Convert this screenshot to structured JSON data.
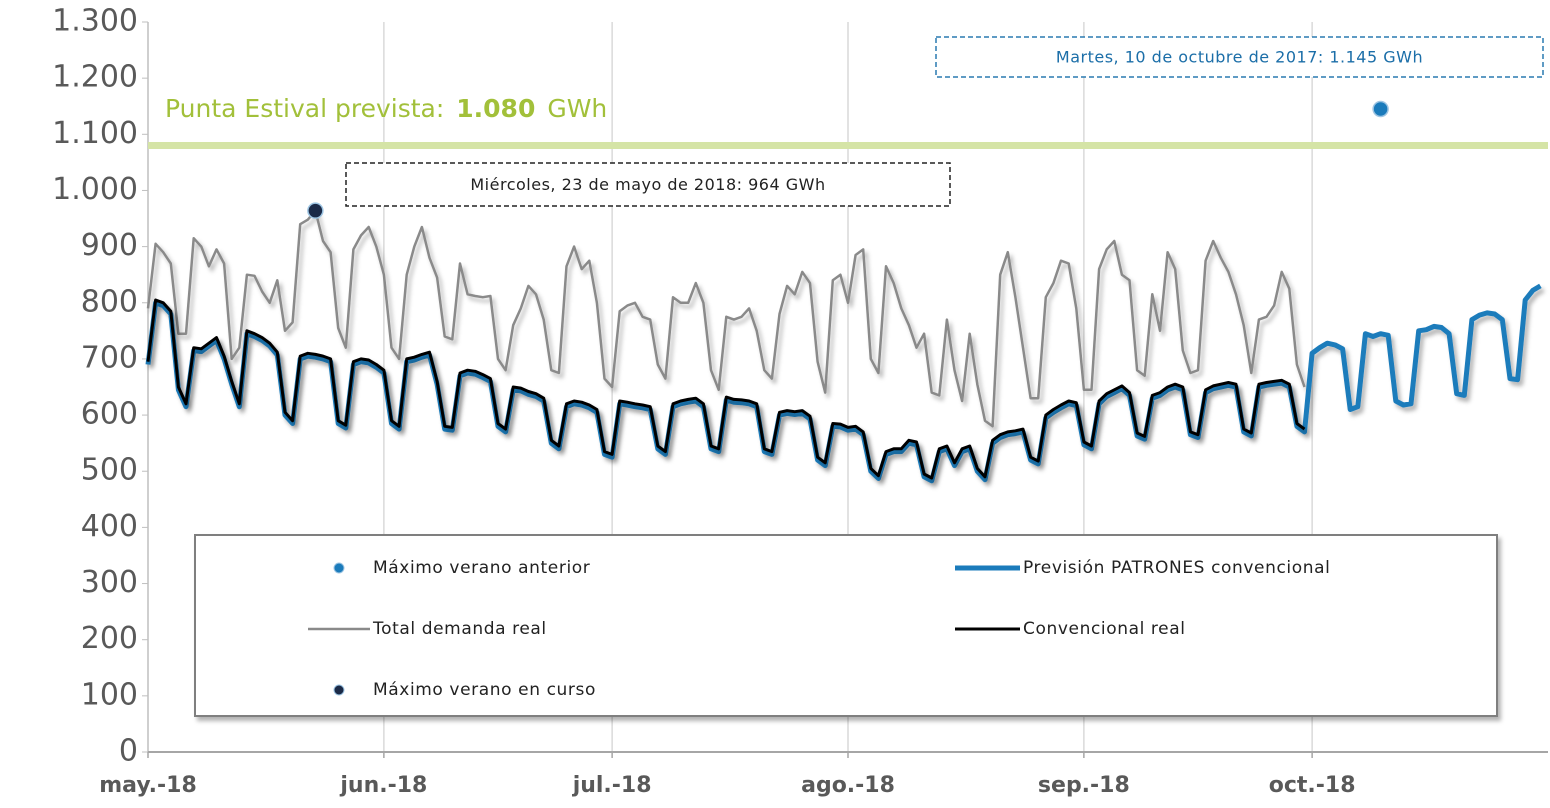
{
  "chart_data": {
    "type": "line",
    "annotations": [
      {
        "text": "Miércoles, 23 de mayo de 2018: 964 GWh"
      },
      {
        "text": "Martes, 10 de octubre de 2017: 1.145 GWh"
      }
    ],
    "reference_line": {
      "text": "Punta Estival prevista:",
      "value": 1080,
      "value_label": "1.080",
      "unit": "GWh",
      "color": "#d5e4a6",
      "text_color": "#a2c03a"
    },
    "xlim": [
      0,
      184
    ],
    "xticks": [
      {
        "value": 0,
        "label": "may.-18"
      },
      {
        "value": 31,
        "label": "jun.-18"
      },
      {
        "value": 61,
        "label": "jul.-18"
      },
      {
        "value": 92,
        "label": "ago.-18"
      },
      {
        "value": 123,
        "label": "sep.-18"
      },
      {
        "value": 153,
        "label": "oct.-18"
      }
    ],
    "ylim": [
      0,
      1300
    ],
    "yticks": [
      0,
      100,
      200,
      300,
      400,
      500,
      600,
      700,
      800,
      900,
      {
        "value": 1000,
        "label": "1.000"
      },
      {
        "value": 1100,
        "label": "1.100"
      },
      {
        "value": 1200,
        "label": "1.200"
      },
      {
        "value": 1300,
        "label": "1.300"
      }
    ],
    "xgrid": true,
    "x": [
      0,
      1,
      2,
      3,
      4,
      5,
      6,
      7,
      8,
      9,
      10,
      11,
      12,
      13,
      14,
      15,
      16,
      17,
      18,
      19,
      20,
      21,
      22,
      23,
      24,
      25,
      26,
      27,
      28,
      29,
      30,
      31,
      32,
      33,
      34,
      35,
      36,
      37,
      38,
      39,
      40,
      41,
      42,
      43,
      44,
      45,
      46,
      47,
      48,
      49,
      50,
      51,
      52,
      53,
      54,
      55,
      56,
      57,
      58,
      59,
      60,
      61,
      62,
      63,
      64,
      65,
      66,
      67,
      68,
      69,
      70,
      71,
      72,
      73,
      74,
      75,
      76,
      77,
      78,
      79,
      80,
      81,
      82,
      83,
      84,
      85,
      86,
      87,
      88,
      89,
      90,
      91,
      92,
      93,
      94,
      95,
      96,
      97,
      98,
      99,
      100,
      101,
      102,
      103,
      104,
      105,
      106,
      107,
      108,
      109,
      110,
      111,
      112,
      113,
      114,
      115,
      116,
      117,
      118,
      119,
      120,
      121,
      122,
      123,
      124,
      125,
      126,
      127,
      128,
      129,
      130,
      131,
      132,
      133,
      134,
      135,
      136,
      137,
      138,
      139,
      140,
      141,
      142,
      143,
      144,
      145,
      146,
      147,
      148,
      149,
      150,
      151,
      152,
      153,
      154,
      155,
      156,
      157,
      158,
      159,
      160,
      161,
      162,
      163,
      164,
      165,
      166,
      167,
      168,
      169,
      170,
      171,
      172,
      173,
      174,
      175,
      176,
      177,
      178,
      179,
      180,
      181,
      182,
      183
    ],
    "series": [
      {
        "name": "Máximo verano anterior",
        "kind": "point",
        "color": "#1b7bbb",
        "x": [
          162
        ],
        "values": [
          1145
        ]
      },
      {
        "name": "Previsión PATRONES convencional",
        "kind": "line",
        "color": "#1b7bbb",
        "width": 5,
        "values": [
          690,
          800,
          795,
          780,
          645,
          615,
          715,
          713,
          723,
          733,
          700,
          655,
          615,
          745,
          740,
          733,
          723,
          707,
          600,
          585,
          700,
          705,
          703,
          700,
          695,
          585,
          577,
          690,
          695,
          693,
          685,
          675,
          585,
          575,
          695,
          698,
          703,
          707,
          655,
          575,
          573,
          670,
          675,
          673,
          667,
          660,
          580,
          570,
          645,
          643,
          637,
          633,
          625,
          550,
          540,
          615,
          620,
          618,
          613,
          605,
          530,
          525,
          620,
          618,
          615,
          613,
          610,
          540,
          530,
          615,
          620,
          623,
          625,
          615,
          540,
          535,
          627,
          623,
          622,
          620,
          615,
          535,
          530,
          600,
          603,
          601,
          603,
          593,
          520,
          510,
          580,
          579,
          573,
          575,
          565,
          500,
          487,
          530,
          535,
          535,
          550,
          547,
          490,
          483,
          535,
          540,
          510,
          535,
          540,
          500,
          485,
          550,
          560,
          565,
          567,
          570,
          520,
          513,
          595,
          605,
          613,
          620,
          617,
          547,
          540,
          620,
          633,
          640,
          647,
          635,
          563,
          557,
          630,
          635,
          645,
          650,
          645,
          565,
          560,
          640,
          647,
          650,
          653,
          650,
          570,
          563,
          650,
          653,
          655,
          657,
          650,
          580,
          570,
          710,
          720,
          728,
          725,
          718,
          610,
          615,
          745,
          740,
          745,
          742,
          625,
          618,
          620,
          750,
          752,
          758,
          756,
          745,
          638,
          635,
          770,
          778,
          782,
          780,
          770,
          665,
          663,
          805,
          822,
          830
        ]
      },
      {
        "name": "Total demanda real",
        "kind": "line",
        "color": "#8a8a8a",
        "width": 2.5,
        "values": [
          790,
          905,
          890,
          870,
          745,
          745,
          915,
          900,
          865,
          895,
          870,
          700,
          720,
          850,
          848,
          820,
          800,
          840,
          750,
          765,
          940,
          948,
          964,
          910,
          890,
          755,
          720,
          895,
          920,
          935,
          900,
          850,
          720,
          700,
          850,
          900,
          935,
          880,
          845,
          740,
          735,
          870,
          815,
          812,
          810,
          812,
          700,
          680,
          760,
          790,
          830,
          815,
          770,
          680,
          675,
          865,
          900,
          860,
          875,
          800,
          665,
          650,
          785,
          795,
          800,
          775,
          770,
          690,
          665,
          810,
          800,
          800,
          835,
          800,
          680,
          645,
          775,
          770,
          775,
          790,
          750,
          680,
          665,
          780,
          830,
          815,
          855,
          835,
          695,
          640,
          840,
          850,
          800,
          885,
          895,
          700,
          675,
          865,
          835,
          790,
          760,
          720,
          745,
          640,
          635,
          770,
          680,
          625,
          745,
          655,
          590,
          580,
          850,
          890,
          810,
          720,
          630,
          630,
          810,
          835,
          875,
          870,
          790,
          645,
          645,
          860,
          895,
          910,
          850,
          840,
          680,
          670,
          815,
          750,
          890,
          860,
          715,
          675,
          680,
          875,
          910,
          880,
          855,
          815,
          760,
          675,
          770,
          775,
          795,
          855,
          825,
          690,
          650,
          null,
          null,
          null,
          null,
          null,
          null,
          null,
          null,
          null,
          null,
          null,
          null,
          null,
          null,
          null,
          null,
          null,
          null,
          null,
          null,
          null,
          null,
          null,
          null,
          null,
          null,
          null,
          null,
          null,
          null,
          null
        ]
      },
      {
        "name": "Convencional real",
        "kind": "line",
        "color": "#000000",
        "width": 3,
        "values": [
          695,
          805,
          800,
          785,
          650,
          620,
          720,
          718,
          728,
          738,
          705,
          660,
          620,
          750,
          745,
          738,
          728,
          712,
          605,
          590,
          705,
          710,
          708,
          705,
          700,
          590,
          582,
          695,
          700,
          698,
          690,
          680,
          590,
          580,
          700,
          703,
          708,
          712,
          660,
          580,
          578,
          675,
          680,
          678,
          672,
          665,
          585,
          575,
          650,
          648,
          642,
          638,
          630,
          555,
          545,
          620,
          625,
          623,
          618,
          610,
          535,
          530,
          625,
          623,
          620,
          618,
          615,
          545,
          535,
          620,
          625,
          628,
          630,
          620,
          545,
          540,
          632,
          628,
          627,
          625,
          620,
          540,
          535,
          605,
          608,
          606,
          608,
          598,
          525,
          515,
          585,
          584,
          578,
          580,
          570,
          505,
          492,
          535,
          540,
          540,
          555,
          552,
          495,
          488,
          540,
          545,
          515,
          540,
          545,
          505,
          490,
          555,
          565,
          570,
          572,
          575,
          525,
          518,
          600,
          610,
          618,
          625,
          622,
          552,
          545,
          625,
          638,
          645,
          652,
          640,
          568,
          562,
          635,
          640,
          650,
          655,
          650,
          570,
          565,
          645,
          652,
          655,
          658,
          655,
          575,
          568,
          655,
          658,
          660,
          662,
          655,
          585,
          575,
          null,
          null,
          null,
          null,
          null,
          null,
          null,
          null,
          null,
          null,
          null,
          null,
          null,
          null,
          null,
          null,
          null,
          null,
          null,
          null,
          null,
          null,
          null,
          null,
          null,
          null,
          null,
          null,
          null,
          null,
          null
        ]
      },
      {
        "name": "Máximo verano en curso",
        "kind": "point",
        "color": "#1b2a47",
        "x": [
          22
        ],
        "values": [
          964
        ]
      }
    ]
  }
}
